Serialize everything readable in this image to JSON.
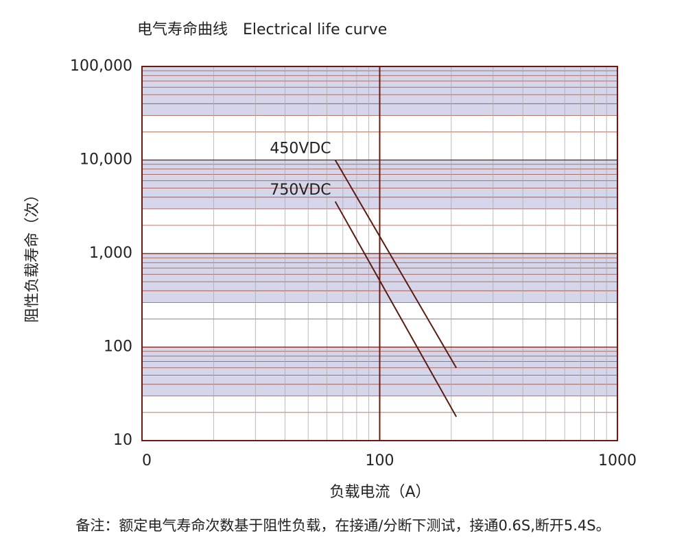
{
  "chart_data": {
    "type": "line",
    "title": "电气寿命曲线　Electrical life curve",
    "x_label": "负载电流（A）",
    "y_label": "阻性负载寿命（次）",
    "note": "备注：额定电气寿命次数基于阻性负载，在接通/分断下测试，接通0.6S,断开5.4S。",
    "x_scale": "log",
    "y_scale": "log",
    "xlim": [
      10,
      1000
    ],
    "xticks": [
      {
        "value": 10,
        "label": "0"
      },
      100,
      1000
    ],
    "ylim": [
      10,
      100000
    ],
    "yticks": [
      10,
      100,
      {
        "value": 1000,
        "label": "1,000"
      },
      {
        "value": 10000,
        "label": "10,000"
      },
      {
        "value": 100000,
        "label": "100,000"
      }
    ],
    "grid": true,
    "x": [
      65,
      210
    ],
    "series": [
      {
        "name": "450VDC",
        "color": "#5a1a10",
        "values": [
          10000,
          60
        ]
      },
      {
        "name": "750VDC",
        "color": "#5a1a10",
        "values": [
          3600,
          18
        ]
      }
    ]
  }
}
